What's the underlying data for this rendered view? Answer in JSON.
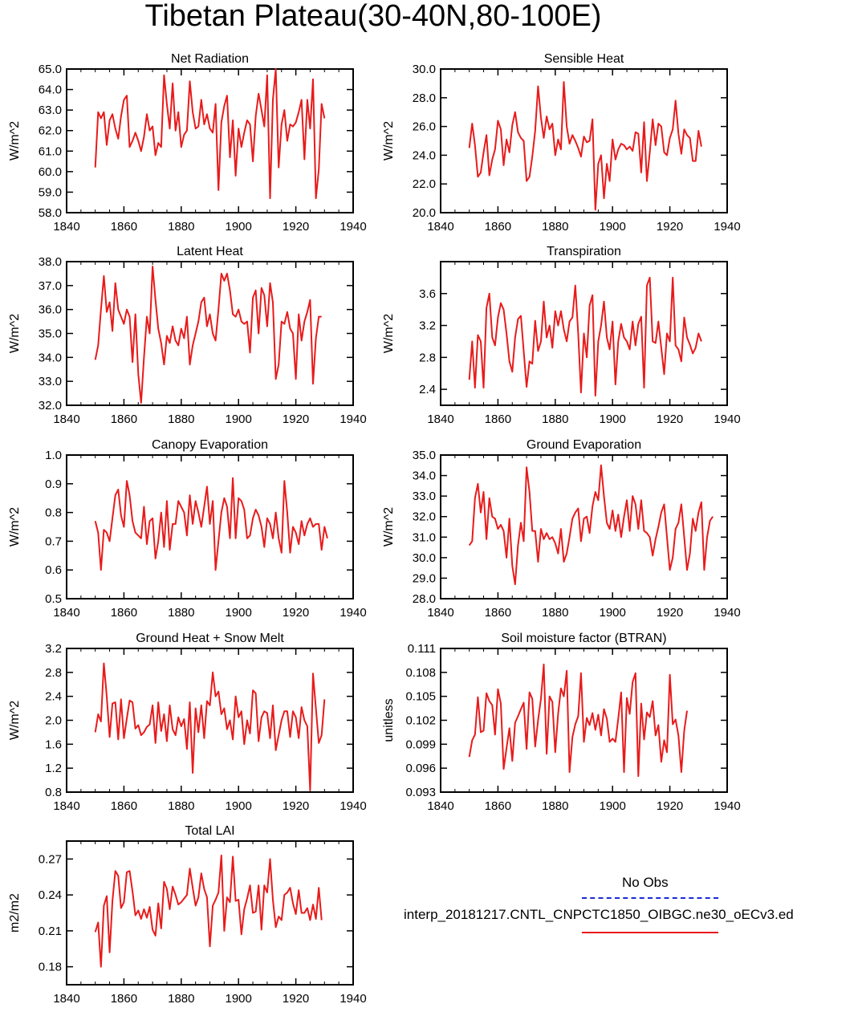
{
  "title": "Tibetan Plateau(30-40N,80-100E)",
  "legend": {
    "obs_label": "No Obs",
    "case_label": "interp_20181217.CNTL_CNPCTC1850_OIBGC.ne30_oECv3.ed",
    "obs_color": "#1a2bd6",
    "case_color": "#e81b1b"
  },
  "chart_data": [
    {
      "type": "line",
      "title": "Net Radiation",
      "ylabel": "W/m^2",
      "xlim": [
        1840,
        1940
      ],
      "xticks": [
        1840,
        1860,
        1880,
        1900,
        1920,
        1940
      ],
      "ylim": [
        58,
        65
      ],
      "yticks": [
        "58.0",
        "59.0",
        "60.0",
        "61.0",
        "62.0",
        "63.0",
        "64.0",
        "65.0"
      ],
      "x_start": 1850,
      "values": [
        60.2,
        62.9,
        62.6,
        62.9,
        61.3,
        62.5,
        62.8,
        62.1,
        61.6,
        62.7,
        63.5,
        63.7,
        61.2,
        61.5,
        61.9,
        61.5,
        61.0,
        61.7,
        62.8,
        62.0,
        62.2,
        60.8,
        61.4,
        61.2,
        64.7,
        63.3,
        62.1,
        64.3,
        62.0,
        62.9,
        61.2,
        61.8,
        62.0,
        64.4,
        62.9,
        62.1,
        62.2,
        63.5,
        62.3,
        62.8,
        62.1,
        61.9,
        63.3,
        59.1,
        62.4,
        63.2,
        63.7,
        60.7,
        62.5,
        59.8,
        62.1,
        61.2,
        61.9,
        62.5,
        62.3,
        60.5,
        62.7,
        63.8,
        63.0,
        62.2,
        64.7,
        58.7,
        63.5,
        65.0,
        60.2,
        62.3,
        63.0,
        61.5,
        62.3,
        62.2,
        62.4,
        62.9,
        63.5,
        60.6,
        63.5,
        62.1,
        64.5,
        58.7,
        60.1,
        63.3,
        62.6
      ]
    },
    {
      "type": "line",
      "title": "Sensible Heat",
      "ylabel": "W/m^2",
      "xlim": [
        1840,
        1940
      ],
      "xticks": [
        1840,
        1860,
        1880,
        1900,
        1920,
        1940
      ],
      "ylim": [
        20,
        30
      ],
      "yticks": [
        "20.0",
        "22.0",
        "24.0",
        "26.0",
        "28.0",
        "30.0"
      ],
      "x_start": 1850,
      "values": [
        24.5,
        26.2,
        24.7,
        22.5,
        22.8,
        24.2,
        25.4,
        22.6,
        23.7,
        24.4,
        26.4,
        25.8,
        23.3,
        25.1,
        24.2,
        26.1,
        27.0,
        25.6,
        25.2,
        25.0,
        22.2,
        22.5,
        23.9,
        25.7,
        28.8,
        26.6,
        25.2,
        26.7,
        25.8,
        26.2,
        24.0,
        25.1,
        24.4,
        29.1,
        26.0,
        24.8,
        25.4,
        25.0,
        24.5,
        23.9,
        25.3,
        24.9,
        25.0,
        26.5,
        20.2,
        23.4,
        24.0,
        21.0,
        23.4,
        22.2,
        25.1,
        23.7,
        24.4,
        24.8,
        24.7,
        24.4,
        24.6,
        24.3,
        25.6,
        25.5,
        22.8,
        26.3,
        22.2,
        24.2,
        26.5,
        24.7,
        26.2,
        26.0,
        24.2,
        24.0,
        25.2,
        25.8,
        27.8,
        25.5,
        24.1,
        25.8,
        25.4,
        25.2,
        23.6,
        23.6,
        25.7,
        24.6
      ]
    },
    {
      "type": "line",
      "title": "Latent Heat",
      "ylabel": "W/m^2",
      "xlim": [
        1840,
        1940
      ],
      "xticks": [
        1840,
        1860,
        1880,
        1900,
        1920,
        1940
      ],
      "ylim": [
        32,
        38
      ],
      "yticks": [
        "32.0",
        "33.0",
        "34.0",
        "35.0",
        "36.0",
        "37.0",
        "38.0"
      ],
      "x_start": 1850,
      "values": [
        33.9,
        34.5,
        36.0,
        37.4,
        35.9,
        36.3,
        35.1,
        37.1,
        36.0,
        35.7,
        35.4,
        36.0,
        35.7,
        33.8,
        35.8,
        33.3,
        32.1,
        34.0,
        35.7,
        35.0,
        37.8,
        36.4,
        35.2,
        34.6,
        33.7,
        34.9,
        34.6,
        35.3,
        34.7,
        34.5,
        35.2,
        34.8,
        35.7,
        33.7,
        34.5,
        35.0,
        35.5,
        36.3,
        36.5,
        35.3,
        35.8,
        35.0,
        34.7,
        36.0,
        37.5,
        37.2,
        37.5,
        36.8,
        35.8,
        35.7,
        36.0,
        35.5,
        35.4,
        35.5,
        34.2,
        36.5,
        36.8,
        35.0,
        36.9,
        36.6,
        35.3,
        37.1,
        36.3,
        33.1,
        33.7,
        35.5,
        35.4,
        35.9,
        35.2,
        35.0,
        33.1,
        35.8,
        34.7,
        35.5,
        35.9,
        36.4,
        32.9,
        34.8,
        35.7,
        35.7
      ]
    },
    {
      "type": "line",
      "title": "Transpiration",
      "ylabel": "W/m^2",
      "xlim": [
        1840,
        1940
      ],
      "xticks": [
        1840,
        1860,
        1880,
        1900,
        1920,
        1940
      ],
      "ylim": [
        2.2,
        4.0
      ],
      "yticks": [
        "2.4",
        "2.8",
        "3.2",
        "3.6"
      ],
      "x_start": 1850,
      "values": [
        2.52,
        3.0,
        2.42,
        3.08,
        3.0,
        2.42,
        3.42,
        3.6,
        3.05,
        2.95,
        3.3,
        3.48,
        3.4,
        3.1,
        2.75,
        2.62,
        3.05,
        3.28,
        3.32,
        2.88,
        2.43,
        2.75,
        2.72,
        3.26,
        2.88,
        3.0,
        3.5,
        3.05,
        3.2,
        2.92,
        3.38,
        3.2,
        3.38,
        3.15,
        3.0,
        3.25,
        3.3,
        3.7,
        3.1,
        2.36,
        3.1,
        2.8,
        3.45,
        3.58,
        2.32,
        3.0,
        3.2,
        3.5,
        3.05,
        2.9,
        3.25,
        2.46,
        3.0,
        3.22,
        3.05,
        3.0,
        2.9,
        3.25,
        2.95,
        3.22,
        3.31,
        2.42,
        3.7,
        3.8,
        3.0,
        2.98,
        3.25,
        2.92,
        2.59,
        3.1,
        3.0,
        3.8,
        2.95,
        2.9,
        2.75,
        3.3,
        3.05,
        2.96,
        2.85,
        2.92,
        3.1,
        3.0
      ]
    },
    {
      "type": "line",
      "title": "Canopy Evaporation",
      "ylabel": "W/m^2",
      "xlim": [
        1840,
        1940
      ],
      "xticks": [
        1840,
        1860,
        1880,
        1900,
        1920,
        1940
      ],
      "ylim": [
        0.5,
        1.0
      ],
      "yticks": [
        "0.5",
        "0.6",
        "0.7",
        "0.8",
        "0.9",
        "1.0"
      ],
      "x_start": 1850,
      "values": [
        0.77,
        0.73,
        0.6,
        0.74,
        0.73,
        0.7,
        0.78,
        0.86,
        0.88,
        0.79,
        0.75,
        0.91,
        0.86,
        0.77,
        0.73,
        0.72,
        0.71,
        0.82,
        0.69,
        0.77,
        0.78,
        0.64,
        0.7,
        0.8,
        0.68,
        0.84,
        0.67,
        0.76,
        0.76,
        0.84,
        0.82,
        0.8,
        0.72,
        0.86,
        0.76,
        0.84,
        0.8,
        0.75,
        0.82,
        0.89,
        0.76,
        0.84,
        0.6,
        0.7,
        0.8,
        0.85,
        0.82,
        0.71,
        0.92,
        0.71,
        0.85,
        0.84,
        0.81,
        0.71,
        0.72,
        0.78,
        0.81,
        0.79,
        0.75,
        0.68,
        0.78,
        0.76,
        0.71,
        0.8,
        0.71,
        0.66,
        0.91,
        0.8,
        0.66,
        0.75,
        0.73,
        0.69,
        0.77,
        0.72,
        0.76,
        0.78,
        0.75,
        0.76,
        0.76,
        0.67,
        0.75,
        0.71
      ]
    },
    {
      "type": "line",
      "title": "Ground Evaporation",
      "ylabel": "W/m^2",
      "xlim": [
        1840,
        1940
      ],
      "xticks": [
        1840,
        1860,
        1880,
        1900,
        1920,
        1940
      ],
      "ylim": [
        28,
        35
      ],
      "yticks": [
        "28.0",
        "29.0",
        "30.0",
        "31.0",
        "32.0",
        "33.0",
        "34.0",
        "35.0"
      ],
      "x_start": 1850,
      "values": [
        30.6,
        30.8,
        32.9,
        33.6,
        32.2,
        33.2,
        30.9,
        32.9,
        32.0,
        31.9,
        31.4,
        31.6,
        31.3,
        30.0,
        31.9,
        29.6,
        28.7,
        30.6,
        31.7,
        30.8,
        34.4,
        33.2,
        31.3,
        31.3,
        29.8,
        31.4,
        30.9,
        31.2,
        30.9,
        31.0,
        30.7,
        30.2,
        31.4,
        29.8,
        30.2,
        31.0,
        31.9,
        32.2,
        32.4,
        30.8,
        31.9,
        32.0,
        31.2,
        32.5,
        33.2,
        32.8,
        34.5,
        33.0,
        31.7,
        31.4,
        32.3,
        31.3,
        32.1,
        31.0,
        32.0,
        32.8,
        31.3,
        33.0,
        32.6,
        31.4,
        32.8,
        31.3,
        31.2,
        31.0,
        30.1,
        30.9,
        31.5,
        32.2,
        32.6,
        31.0,
        29.4,
        30.0,
        31.4,
        31.7,
        32.6,
        31.0,
        29.4,
        30.2,
        31.9,
        31.3,
        32.2,
        32.7,
        29.4,
        31.0,
        31.8,
        32.0
      ]
    },
    {
      "type": "line",
      "title": "Ground Heat + Snow Melt",
      "ylabel": "W/m^2",
      "xlim": [
        1840,
        1940
      ],
      "xticks": [
        1840,
        1860,
        1880,
        1900,
        1920,
        1940
      ],
      "ylim": [
        0.8,
        3.2
      ],
      "yticks": [
        "0.8",
        "1.2",
        "1.6",
        "2.0",
        "2.4",
        "2.8",
        "3.2"
      ],
      "x_start": 1850,
      "values": [
        1.8,
        2.1,
        1.98,
        2.95,
        2.4,
        1.72,
        2.28,
        2.3,
        1.68,
        2.35,
        1.7,
        2.03,
        2.33,
        2.3,
        1.86,
        1.92,
        1.75,
        1.8,
        1.89,
        1.93,
        2.25,
        1.62,
        2.3,
        1.82,
        2.1,
        1.65,
        2.25,
        1.85,
        1.75,
        2.05,
        1.9,
        2.02,
        1.52,
        2.3,
        1.12,
        2.2,
        1.8,
        2.25,
        1.7,
        2.32,
        2.25,
        2.8,
        2.4,
        2.48,
        2.1,
        2.2,
        1.85,
        2.0,
        1.68,
        2.4,
        2.05,
        2.15,
        1.6,
        2.0,
        1.78,
        2.5,
        2.45,
        1.65,
        2.05,
        2.15,
        2.12,
        1.7,
        2.25,
        1.5,
        1.75,
        2.0,
        2.15,
        2.15,
        1.72,
        2.15,
        2.05,
        1.7,
        2.22,
        2.0,
        1.9,
        0.83,
        2.78,
        2.2,
        1.62,
        1.75,
        2.35
      ]
    },
    {
      "type": "line",
      "title": "Soil moisture factor (BTRAN)",
      "ylabel": "unitless",
      "xlim": [
        1840,
        1940
      ],
      "xticks": [
        1840,
        1860,
        1880,
        1900,
        1920,
        1940
      ],
      "ylim": [
        0.093,
        0.111
      ],
      "yticks": [
        "0.093",
        "0.096",
        "0.099",
        "0.102",
        "0.105",
        "0.108",
        "0.111"
      ],
      "x_start": 1850,
      "values": [
        0.0974,
        0.0995,
        0.1002,
        0.1049,
        0.1005,
        0.1007,
        0.1054,
        0.1044,
        0.1039,
        0.1002,
        0.1059,
        0.1041,
        0.0959,
        0.0985,
        0.101,
        0.0969,
        0.1017,
        0.1025,
        0.1034,
        0.1042,
        0.0984,
        0.1055,
        0.1047,
        0.0987,
        0.102,
        0.1047,
        0.109,
        0.0978,
        0.105,
        0.1043,
        0.098,
        0.1028,
        0.106,
        0.105,
        0.1082,
        0.0955,
        0.0999,
        0.1015,
        0.1025,
        0.1079,
        0.0993,
        0.1023,
        0.1014,
        0.1029,
        0.1008,
        0.1027,
        0.1001,
        0.1034,
        0.1022,
        0.0993,
        0.0997,
        0.0993,
        0.1022,
        0.1055,
        0.0955,
        0.1048,
        0.1028,
        0.1068,
        0.1079,
        0.095,
        0.1041,
        0.0996,
        0.103,
        0.1024,
        0.1044,
        0.1001,
        0.1014,
        0.0968,
        0.0995,
        0.098,
        0.1077,
        0.1015,
        0.1021,
        0.1001,
        0.0955,
        0.1007,
        0.1032
      ]
    },
    {
      "type": "line",
      "title": "Total LAI",
      "ylabel": "m2/m2",
      "xlim": [
        1840,
        1940
      ],
      "xticks": [
        1840,
        1860,
        1880,
        1900,
        1920,
        1940
      ],
      "ylim": [
        0.165,
        0.285
      ],
      "yticks": [
        "0.18",
        "0.21",
        "0.24",
        "0.27"
      ],
      "x_start": 1850,
      "values": [
        0.209,
        0.217,
        0.18,
        0.231,
        0.239,
        0.192,
        0.235,
        0.26,
        0.256,
        0.229,
        0.234,
        0.259,
        0.26,
        0.243,
        0.223,
        0.227,
        0.22,
        0.228,
        0.221,
        0.23,
        0.211,
        0.206,
        0.233,
        0.212,
        0.251,
        0.245,
        0.228,
        0.247,
        0.24,
        0.232,
        0.234,
        0.237,
        0.24,
        0.262,
        0.246,
        0.231,
        0.238,
        0.258,
        0.245,
        0.238,
        0.197,
        0.231,
        0.236,
        0.242,
        0.273,
        0.21,
        0.238,
        0.234,
        0.272,
        0.235,
        0.236,
        0.207,
        0.228,
        0.237,
        0.248,
        0.225,
        0.226,
        0.248,
        0.211,
        0.248,
        0.242,
        0.27,
        0.236,
        0.213,
        0.222,
        0.219,
        0.24,
        0.242,
        0.246,
        0.233,
        0.224,
        0.244,
        0.225,
        0.225,
        0.229,
        0.219,
        0.232,
        0.22,
        0.246,
        0.219
      ]
    }
  ]
}
